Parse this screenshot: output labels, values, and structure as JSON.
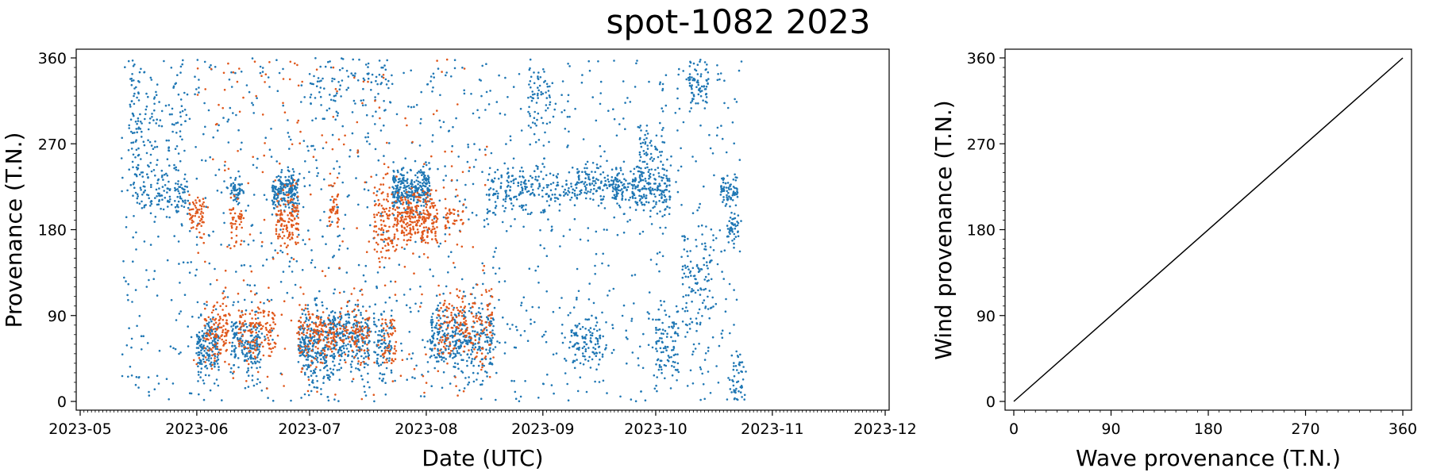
{
  "title": "spot-1082 2023",
  "colors": {
    "wave": "#1f77b4",
    "wind": "#e0581c",
    "line": "#000000"
  },
  "chart_data": [
    {
      "type": "scatter",
      "xlabel": "Date (UTC)",
      "ylabel": "Provenance (T.N.)",
      "xlim": [
        "2023-05-01",
        "2023-12-01"
      ],
      "ylim": [
        0,
        360
      ],
      "xticks": [
        "2023-05",
        "2023-06",
        "2023-07",
        "2023-08",
        "2023-09",
        "2023-10",
        "2023-11",
        "2023-12"
      ],
      "yticks": [
        0,
        90,
        180,
        270,
        360
      ],
      "grid": false,
      "series": [
        {
          "color": "#1f77b4",
          "clusters": [
            {
              "x0": "2023-05-14",
              "x1": "2023-05-16",
              "y": 300,
              "sd": 35,
              "n": 60
            },
            {
              "x0": "2023-05-15",
              "x1": "2023-05-24",
              "y": 220,
              "sd": 12,
              "n": 90
            },
            {
              "x0": "2023-05-17",
              "x1": "2023-05-28",
              "y": 300,
              "sd": 30,
              "n": 80
            },
            {
              "x0": "2023-05-26",
              "x1": "2023-05-29",
              "y": 215,
              "sd": 12,
              "n": 50
            },
            {
              "x0": "2023-06-01",
              "x1": "2023-06-06",
              "y": 55,
              "sd": 15,
              "n": 170
            },
            {
              "x0": "2023-06-10",
              "x1": "2023-06-12",
              "y": 222,
              "sd": 10,
              "n": 50
            },
            {
              "x0": "2023-06-10",
              "x1": "2023-06-17",
              "y": 58,
              "sd": 15,
              "n": 170
            },
            {
              "x0": "2023-06-21",
              "x1": "2023-06-27",
              "y": 220,
              "sd": 10,
              "n": 180
            },
            {
              "x0": "2023-06-28",
              "x1": "2023-07-01",
              "y": 58,
              "sd": 18,
              "n": 120
            },
            {
              "x0": "2023-07-02",
              "x1": "2023-07-07",
              "y": 55,
              "sd": 22,
              "n": 150
            },
            {
              "x0": "2023-07-07",
              "x1": "2023-07-16",
              "y": 65,
              "sd": 16,
              "n": 220
            },
            {
              "x0": "2023-07-01",
              "x1": "2023-07-22",
              "y": 330,
              "sd": 22,
              "n": 100
            },
            {
              "x0": "2023-07-18",
              "x1": "2023-07-22",
              "y": 60,
              "sd": 18,
              "n": 80
            },
            {
              "x0": "2023-07-23",
              "x1": "2023-08-01",
              "y": 222,
              "sd": 11,
              "n": 260
            },
            {
              "x0": "2023-08-02",
              "x1": "2023-08-08",
              "y": 68,
              "sd": 18,
              "n": 130
            },
            {
              "x0": "2023-08-08",
              "x1": "2023-08-18",
              "y": 60,
              "sd": 20,
              "n": 200
            },
            {
              "x0": "2023-08-17",
              "x1": "2023-09-10",
              "y": 222,
              "sd": 13,
              "n": 220
            },
            {
              "x0": "2023-08-28",
              "x1": "2023-09-02",
              "y": 325,
              "sd": 20,
              "n": 60
            },
            {
              "x0": "2023-09-08",
              "x1": "2023-09-17",
              "y": 65,
              "sd": 16,
              "n": 110
            },
            {
              "x0": "2023-09-10",
              "x1": "2023-09-20",
              "y": 228,
              "sd": 11,
              "n": 110
            },
            {
              "x0": "2023-09-20",
              "x1": "2023-10-04",
              "y": 222,
              "sd": 12,
              "n": 230
            },
            {
              "x0": "2023-09-26",
              "x1": "2023-10-02",
              "y": 260,
              "sd": 18,
              "n": 60
            },
            {
              "x0": "2023-10-01",
              "x1": "2023-10-06",
              "y": 60,
              "sd": 20,
              "n": 90
            },
            {
              "x0": "2023-10-08",
              "x1": "2023-10-15",
              "y": 120,
              "sd": 35,
              "n": 120
            },
            {
              "x0": "2023-10-10",
              "x1": "2023-10-14",
              "y": 335,
              "sd": 15,
              "n": 80
            },
            {
              "x0": "2023-10-18",
              "x1": "2023-10-22",
              "y": 220,
              "sd": 8,
              "n": 70
            },
            {
              "x0": "2023-10-20",
              "x1": "2023-10-22",
              "y": 180,
              "sd": 10,
              "n": 40
            },
            {
              "x0": "2023-10-21",
              "x1": "2023-10-24",
              "y": 20,
              "sd": 20,
              "n": 50
            }
          ],
          "scatter": {
            "x0": "2023-05-12",
            "x1": "2023-10-24",
            "y0": 0,
            "y1": 360,
            "n": 1200
          }
        },
        {
          "color": "#e0581c",
          "clusters": [
            {
              "x0": "2023-05-30",
              "x1": "2023-06-02",
              "y": 195,
              "sd": 10,
              "n": 60
            },
            {
              "x0": "2023-06-03",
              "x1": "2023-06-09",
              "y": 72,
              "sd": 16,
              "n": 110
            },
            {
              "x0": "2023-06-10",
              "x1": "2023-06-12",
              "y": 190,
              "sd": 10,
              "n": 40
            },
            {
              "x0": "2023-06-12",
              "x1": "2023-06-21",
              "y": 75,
              "sd": 16,
              "n": 130
            },
            {
              "x0": "2023-06-22",
              "x1": "2023-06-27",
              "y": 190,
              "sd": 14,
              "n": 120
            },
            {
              "x0": "2023-06-28",
              "x1": "2023-07-16",
              "y": 70,
              "sd": 14,
              "n": 230
            },
            {
              "x0": "2023-07-06",
              "x1": "2023-07-08",
              "y": 205,
              "sd": 12,
              "n": 40
            },
            {
              "x0": "2023-07-18",
              "x1": "2023-07-23",
              "y": 185,
              "sd": 22,
              "n": 110
            },
            {
              "x0": "2023-07-20",
              "x1": "2023-07-23",
              "y": 62,
              "sd": 14,
              "n": 50
            },
            {
              "x0": "2023-07-24",
              "x1": "2023-08-03",
              "y": 192,
              "sd": 14,
              "n": 260
            },
            {
              "x0": "2023-08-04",
              "x1": "2023-08-18",
              "y": 78,
              "sd": 18,
              "n": 180
            },
            {
              "x0": "2023-08-06",
              "x1": "2023-08-10",
              "y": 190,
              "sd": 15,
              "n": 40
            }
          ],
          "scatter": {
            "x0": "2023-05-30",
            "x1": "2023-08-18",
            "y0": 0,
            "y1": 360,
            "n": 250
          }
        }
      ]
    },
    {
      "type": "line",
      "xlabel": "Wave provenance (T.N.)",
      "ylabel": "Wind provenance (T.N.)",
      "xlim": [
        0,
        360
      ],
      "ylim": [
        0,
        360
      ],
      "xticks": [
        0,
        90,
        180,
        270,
        360
      ],
      "yticks": [
        0,
        90,
        180,
        270,
        360
      ],
      "grid": false,
      "series": [
        {
          "color": "#000000",
          "x": [
            0,
            360
          ],
          "y": [
            0,
            360
          ]
        }
      ]
    }
  ]
}
